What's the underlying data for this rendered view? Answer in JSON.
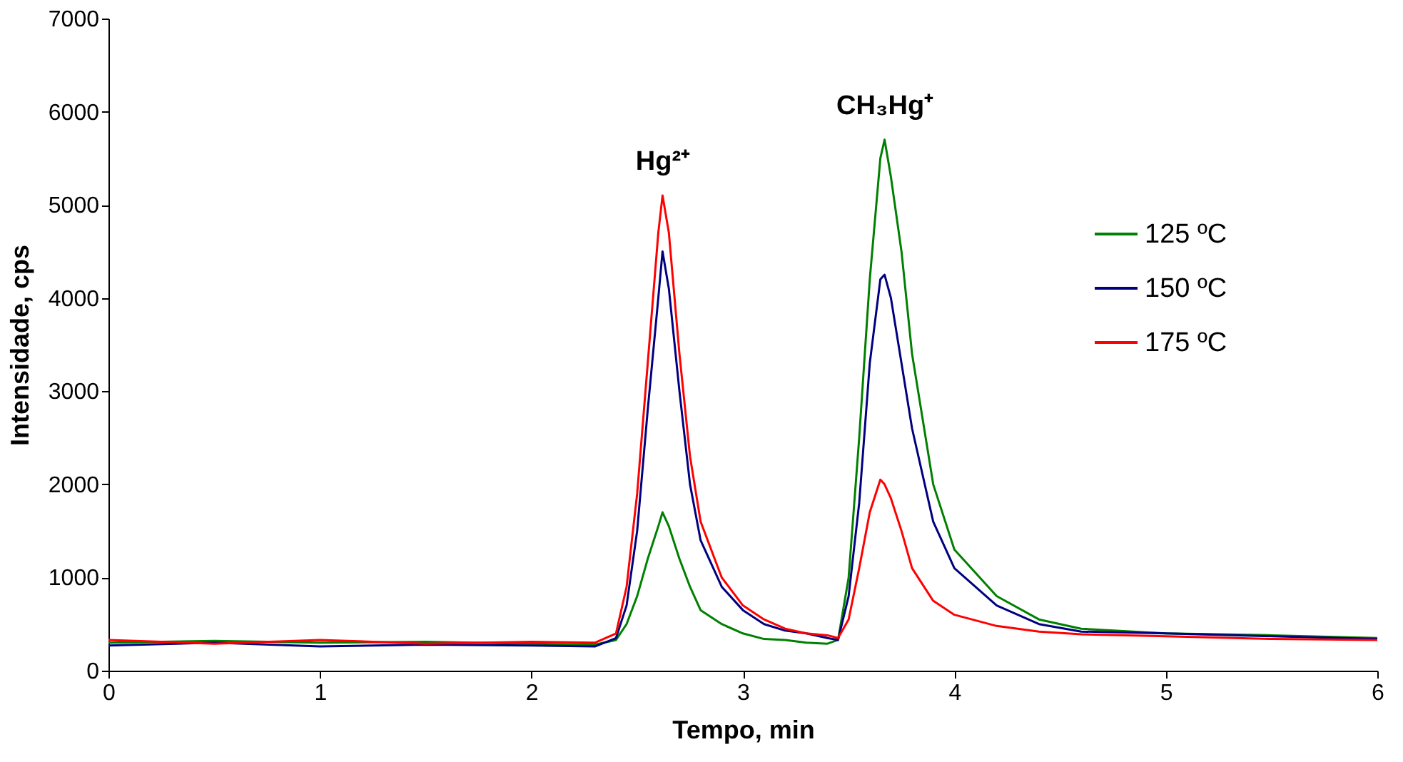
{
  "chart_data": {
    "type": "line",
    "xlabel": "Tempo, min",
    "ylabel": "Intensidade, cps",
    "x": [
      0,
      0.5,
      1,
      1.5,
      2,
      2.3,
      2.4,
      2.45,
      2.5,
      2.55,
      2.6,
      2.62,
      2.65,
      2.7,
      2.75,
      2.8,
      2.9,
      3.0,
      3.1,
      3.2,
      3.3,
      3.4,
      3.45,
      3.5,
      3.55,
      3.6,
      3.65,
      3.67,
      3.7,
      3.75,
      3.8,
      3.9,
      4.0,
      4.2,
      4.4,
      4.6,
      5,
      5.5,
      6
    ],
    "series": [
      {
        "name": "125 ºC",
        "color": "#008000",
        "values": [
          300,
          320,
          300,
          310,
          290,
          280,
          330,
          500,
          800,
          1200,
          1550,
          1700,
          1550,
          1200,
          900,
          650,
          500,
          400,
          340,
          330,
          300,
          290,
          330,
          1000,
          2500,
          4200,
          5500,
          5700,
          5300,
          4500,
          3400,
          2000,
          1300,
          800,
          550,
          450,
          400,
          380,
          350
        ]
      },
      {
        "name": "150 ºC",
        "color": "#000080",
        "values": [
          270,
          300,
          260,
          280,
          270,
          260,
          350,
          700,
          1500,
          2800,
          4000,
          4500,
          4100,
          3000,
          2000,
          1400,
          900,
          650,
          500,
          430,
          400,
          350,
          330,
          800,
          1800,
          3300,
          4200,
          4250,
          4000,
          3300,
          2600,
          1600,
          1100,
          700,
          500,
          420,
          400,
          370,
          340
        ]
      },
      {
        "name": "175 ºC",
        "color": "#ff0000",
        "values": [
          330,
          290,
          330,
          290,
          310,
          300,
          400,
          900,
          1900,
          3300,
          4700,
          5100,
          4700,
          3400,
          2300,
          1600,
          1000,
          700,
          550,
          450,
          400,
          380,
          350,
          550,
          1100,
          1700,
          2050,
          2000,
          1850,
          1500,
          1100,
          750,
          600,
          480,
          420,
          390,
          370,
          340,
          330
        ]
      }
    ],
    "xlim": [
      0,
      6
    ],
    "xticks": [
      0,
      1,
      2,
      3,
      4,
      5,
      6
    ],
    "ylim": [
      0,
      7000
    ],
    "yticks": [
      0,
      1000,
      2000,
      3000,
      4000,
      5000,
      6000,
      7000
    ],
    "annotations": [
      {
        "text": "Hg²⁺",
        "x": 2.62,
        "y": 5100
      },
      {
        "text": "CH₃Hg⁺",
        "x": 3.67,
        "y": 5700
      }
    ],
    "grid": false,
    "legend": "right",
    "marker": "none",
    "line_style": "solid"
  }
}
